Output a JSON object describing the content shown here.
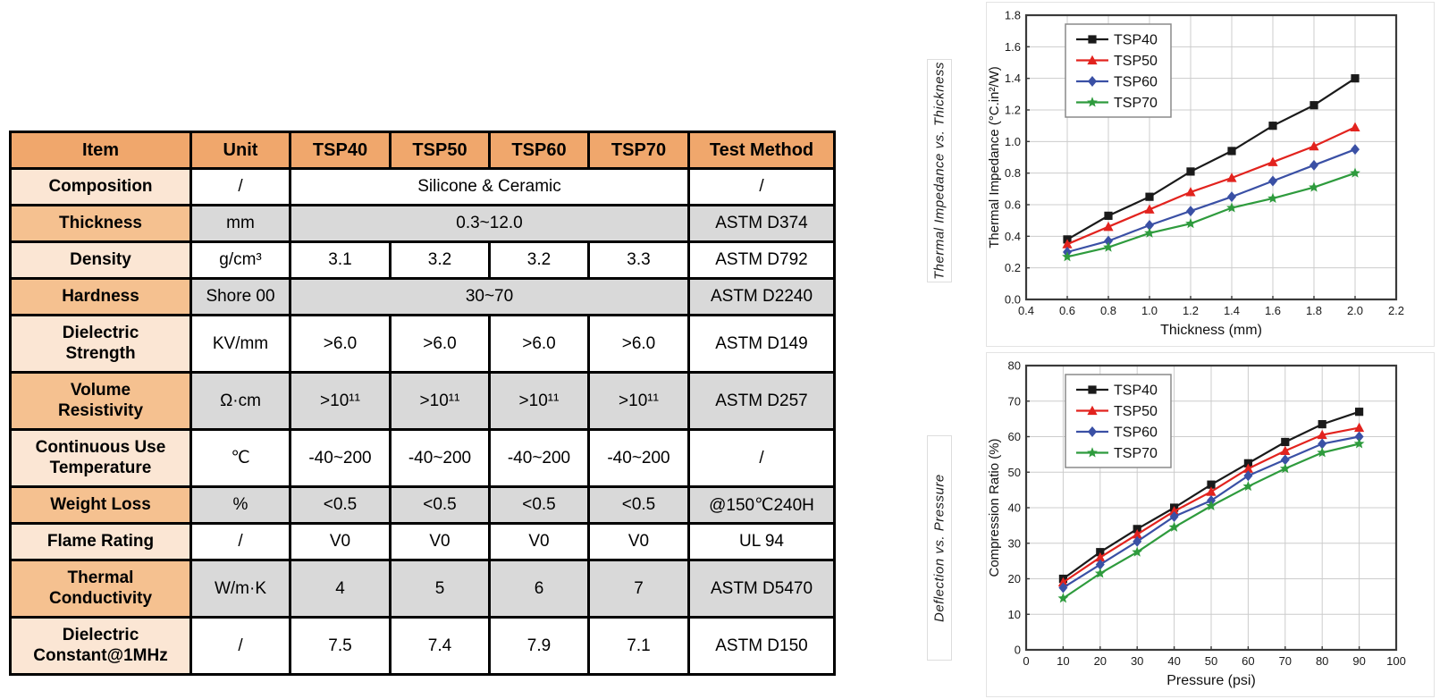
{
  "table": {
    "headers": [
      "Item",
      "Unit",
      "TSP40",
      "TSP50",
      "TSP60",
      "TSP70",
      "Test Method"
    ],
    "rows": [
      {
        "item": "Composition",
        "unit": "/",
        "values": [
          "Silicone & Ceramic"
        ],
        "test": "/",
        "shaded": false
      },
      {
        "item": "Thickness",
        "unit": "mm",
        "values": [
          "0.3~12.0"
        ],
        "test": "ASTM D374",
        "shaded": true
      },
      {
        "item": "Density",
        "unit": "g/cm³",
        "values": [
          "3.1",
          "3.2",
          "3.2",
          "3.3"
        ],
        "test": "ASTM D792",
        "shaded": false
      },
      {
        "item": "Hardness",
        "unit": "Shore 00",
        "values": [
          "30~70"
        ],
        "test": "ASTM D2240",
        "shaded": true
      },
      {
        "item": "Dielectric\nStrength",
        "unit": "KV/mm",
        "values": [
          ">6.0",
          ">6.0",
          ">6.0",
          ">6.0"
        ],
        "test": "ASTM D149",
        "shaded": false
      },
      {
        "item": "Volume\nResistivity",
        "unit": "Ω·cm",
        "values": [
          ">10¹¹",
          ">10¹¹",
          ">10¹¹",
          ">10¹¹"
        ],
        "test": "ASTM D257",
        "shaded": true
      },
      {
        "item": "Continuous Use\nTemperature",
        "unit": "℃",
        "values": [
          "-40~200",
          "-40~200",
          "-40~200",
          "-40~200"
        ],
        "test": "/",
        "shaded": false
      },
      {
        "item": "Weight Loss",
        "unit": "%",
        "values": [
          "<0.5",
          "<0.5",
          "<0.5",
          "<0.5"
        ],
        "test": "@150℃240H",
        "shaded": true
      },
      {
        "item": "Flame Rating",
        "unit": "/",
        "values": [
          "V0",
          "V0",
          "V0",
          "V0"
        ],
        "test": "UL 94",
        "shaded": false
      },
      {
        "item": "Thermal\nConductivity",
        "unit": "W/m·K",
        "values": [
          "4",
          "5",
          "6",
          "7"
        ],
        "test": "ASTM D5470",
        "shaded": true
      },
      {
        "item": "Dielectric\nConstant@1MHz",
        "unit": "/",
        "values": [
          "7.5",
          "7.4",
          "7.9",
          "7.1"
        ],
        "test": "ASTM D150",
        "shaded": false
      }
    ]
  },
  "colors": {
    "header_orange": "#F0A76C",
    "item_light": "#FBE6D4",
    "item_medium": "#F5C190",
    "row_gray": "#D9D9D9",
    "grid": "#cccccc",
    "frame": "#3a3a3a",
    "tsp40": "#1a1a1a",
    "tsp50": "#e2231e",
    "tsp60": "#3a50a5",
    "tsp70": "#2e9b3d"
  },
  "chart_data": [
    {
      "type": "line",
      "title": "Thermal Impedance vs. Thickness",
      "side_label": "Thermal Impedance vs. Thickness",
      "xlabel": "Thickness (mm)",
      "ylabel": "Thermal Impedance (°C.in²/W)",
      "xlim": [
        0.4,
        2.2
      ],
      "ylim": [
        0.0,
        1.8
      ],
      "xticks": [
        0.4,
        0.6,
        0.8,
        1.0,
        1.2,
        1.4,
        1.6,
        1.8,
        2.0,
        2.2
      ],
      "yticks": [
        0.0,
        0.2,
        0.4,
        0.6,
        0.8,
        1.0,
        1.2,
        1.4,
        1.6,
        1.8
      ],
      "xtick_labels": [
        "0.4",
        "0.6",
        "0.8",
        "1.0",
        "1.2",
        "1.4",
        "1.6",
        "1.8",
        "2.0",
        "2.2"
      ],
      "ytick_labels": [
        "0.0",
        "0.2",
        "0.4",
        "0.6",
        "0.8",
        "1.0",
        "1.2",
        "1.4",
        "1.6",
        "1.8"
      ],
      "grid": true,
      "legend_position": "top-left",
      "x": [
        0.6,
        0.8,
        1.0,
        1.2,
        1.4,
        1.6,
        1.8,
        2.0
      ],
      "series": [
        {
          "name": "TSP40",
          "color": "#1a1a1a",
          "marker": "square",
          "values": [
            0.38,
            0.53,
            0.65,
            0.81,
            0.94,
            1.1,
            1.23,
            1.4
          ]
        },
        {
          "name": "TSP50",
          "color": "#e2231e",
          "marker": "triangle",
          "values": [
            0.35,
            0.46,
            0.57,
            0.68,
            0.77,
            0.87,
            0.97,
            1.09
          ]
        },
        {
          "name": "TSP60",
          "color": "#3a50a5",
          "marker": "diamond",
          "values": [
            0.3,
            0.37,
            0.47,
            0.56,
            0.65,
            0.75,
            0.85,
            0.95
          ]
        },
        {
          "name": "TSP70",
          "color": "#2e9b3d",
          "marker": "star",
          "values": [
            0.27,
            0.33,
            0.42,
            0.48,
            0.58,
            0.64,
            0.71,
            0.8
          ]
        }
      ]
    },
    {
      "type": "line",
      "title": "Deflection vs. Pressure",
      "side_label": "Deflection vs. Pressure",
      "xlabel": "Pressure (psi)",
      "ylabel": "Compression Ratio (%)",
      "xlim": [
        0,
        100
      ],
      "ylim": [
        0,
        80
      ],
      "xticks": [
        0,
        10,
        20,
        30,
        40,
        50,
        60,
        70,
        80,
        90,
        100
      ],
      "yticks": [
        0,
        10,
        20,
        30,
        40,
        50,
        60,
        70,
        80
      ],
      "xtick_labels": [
        "0",
        "10",
        "20",
        "30",
        "40",
        "50",
        "60",
        "70",
        "80",
        "90",
        "100"
      ],
      "ytick_labels": [
        "0",
        "10",
        "20",
        "30",
        "40",
        "50",
        "60",
        "70",
        "80"
      ],
      "grid": true,
      "legend_position": "top-left",
      "x": [
        10,
        20,
        30,
        40,
        50,
        60,
        70,
        80,
        90
      ],
      "series": [
        {
          "name": "TSP40",
          "color": "#1a1a1a",
          "marker": "square",
          "values": [
            20.0,
            27.5,
            34.0,
            40.0,
            46.5,
            52.5,
            58.5,
            63.5,
            67.0
          ]
        },
        {
          "name": "TSP50",
          "color": "#e2231e",
          "marker": "triangle",
          "values": [
            19.0,
            26.0,
            32.5,
            39.0,
            44.5,
            51.0,
            56.0,
            60.5,
            62.5
          ]
        },
        {
          "name": "TSP60",
          "color": "#3a50a5",
          "marker": "diamond",
          "values": [
            17.5,
            24.0,
            30.5,
            37.5,
            42.0,
            49.0,
            53.5,
            58.0,
            60.0
          ]
        },
        {
          "name": "TSP70",
          "color": "#2e9b3d",
          "marker": "star",
          "values": [
            14.5,
            21.5,
            27.5,
            34.5,
            40.5,
            46.0,
            51.0,
            55.5,
            58.0
          ]
        }
      ]
    }
  ]
}
